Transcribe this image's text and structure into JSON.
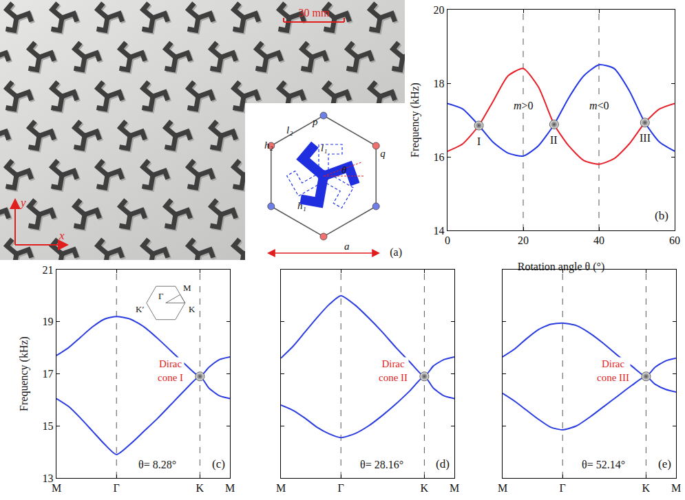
{
  "panel_a": {
    "label": "(a)",
    "scale_bar": "30 mm",
    "axis_labels": [
      "x",
      "y"
    ],
    "unit_cell": {
      "vertices": [
        "p",
        "q"
      ],
      "dimensions": [
        "l₁",
        "l₂",
        "h₁",
        "h₂",
        "θ"
      ],
      "lattice_constant": "a"
    }
  },
  "chart_data": [
    {
      "type": "line",
      "panel": "(b)",
      "x_label": "Rotation angle θ (°)",
      "y_label": "Frequency (kHz)",
      "xlim": [
        0,
        60
      ],
      "xticks": [
        0,
        20,
        40,
        60
      ],
      "ylim": [
        14,
        20
      ],
      "yticks": [
        14,
        16,
        18,
        20
      ],
      "x": [
        0,
        4,
        8.28,
        12,
        16,
        20,
        24,
        28.16,
        32,
        36,
        40,
        44,
        48,
        52.14,
        56,
        60
      ],
      "series": [
        {
          "color": "#e8202a",
          "values": [
            16.15,
            16.35,
            16.85,
            17.5,
            18.2,
            18.4,
            17.9,
            16.88,
            16.3,
            15.9,
            15.8,
            15.95,
            16.35,
            16.93,
            17.3,
            17.45
          ]
        },
        {
          "color": "#2236e6",
          "values": [
            17.45,
            17.3,
            16.85,
            16.4,
            16.1,
            16.02,
            16.3,
            16.88,
            17.6,
            18.2,
            18.5,
            18.4,
            17.8,
            16.93,
            16.4,
            16.15
          ]
        }
      ],
      "vlines": [
        {
          "x": 20,
          "label": "m>0",
          "y": 17.4
        },
        {
          "x": 40,
          "label": "m<0",
          "y": 17.4
        }
      ],
      "points": [
        {
          "label": "I",
          "x": 8.28,
          "y": 16.85
        },
        {
          "label": "II",
          "x": 28.16,
          "y": 16.88
        },
        {
          "label": "III",
          "x": 52.14,
          "y": 16.93
        }
      ]
    },
    {
      "type": "line",
      "panel": "(c)",
      "y_label": "Frequency (kHz)",
      "xlim": [
        0,
        2.89
      ],
      "xticks": [
        {
          "value": 0,
          "label": "M"
        },
        {
          "value": 1,
          "label": "Γ"
        },
        {
          "value": 2.39,
          "label": "K"
        },
        {
          "value": 2.89,
          "label": "M"
        }
      ],
      "ylim": [
        13,
        21
      ],
      "yticks": [
        13,
        15,
        17,
        19,
        21
      ],
      "x": [
        0,
        0.2,
        0.4,
        0.6,
        0.8,
        1,
        1.23,
        1.46,
        1.69,
        1.92,
        2.15,
        2.39,
        2.54,
        2.72,
        2.89
      ],
      "series": [
        {
          "color": "#2a3ce0",
          "values": [
            17.7,
            18.0,
            18.4,
            18.8,
            19.1,
            19.2,
            19.1,
            18.8,
            18.35,
            17.85,
            17.35,
            16.9,
            17.25,
            17.55,
            17.65
          ]
        },
        {
          "color": "#2a3ce0",
          "values": [
            16.05,
            15.75,
            15.3,
            14.8,
            14.3,
            13.9,
            14.3,
            14.8,
            15.3,
            15.85,
            16.4,
            16.9,
            16.45,
            16.15,
            16.05
          ]
        }
      ],
      "vlines": [
        {
          "x": 1
        },
        {
          "x": 2.39
        }
      ],
      "points": [
        {
          "label": "Dirac cone I",
          "x": 2.39,
          "y": 16.9
        }
      ],
      "annotations": [
        "θ= 8.28°"
      ],
      "inset": {
        "labels": [
          "K′",
          "Γ",
          "M",
          "K"
        ]
      }
    },
    {
      "type": "line",
      "panel": "(d)",
      "tick_labels": "x",
      "xlim": [
        0,
        2.89
      ],
      "xticks": [
        {
          "value": 0,
          "label": "M"
        },
        {
          "value": 1,
          "label": "Γ"
        },
        {
          "value": 2.39,
          "label": "K"
        },
        {
          "value": 2.89,
          "label": "M"
        }
      ],
      "ylim": [
        13,
        21
      ],
      "yticks": [
        13,
        15,
        17,
        19,
        21
      ],
      "x": [
        0,
        0.2,
        0.4,
        0.6,
        0.8,
        1,
        1.23,
        1.46,
        1.69,
        1.92,
        2.15,
        2.39,
        2.54,
        2.72,
        2.89
      ],
      "series": [
        {
          "color": "#2a3ce0",
          "values": [
            17.6,
            18.05,
            18.6,
            19.15,
            19.65,
            20.0,
            19.65,
            19.15,
            18.6,
            18.0,
            17.45,
            16.9,
            17.3,
            17.55,
            17.65
          ]
        },
        {
          "color": "#2a3ce0",
          "values": [
            15.8,
            15.6,
            15.3,
            14.95,
            14.7,
            14.55,
            14.7,
            15.0,
            15.4,
            15.85,
            16.35,
            16.9,
            16.45,
            16.15,
            16.05
          ]
        }
      ],
      "vlines": [
        {
          "x": 1
        },
        {
          "x": 2.39
        }
      ],
      "points": [
        {
          "label": "Dirac cone II",
          "x": 2.39,
          "y": 16.9
        }
      ],
      "annotations": [
        "θ= 28.16°"
      ]
    },
    {
      "type": "line",
      "panel": "(e)",
      "tick_labels": "x",
      "xlim": [
        0,
        2.89
      ],
      "xticks": [
        {
          "value": 0,
          "label": "M"
        },
        {
          "value": 1,
          "label": "Γ"
        },
        {
          "value": 2.39,
          "label": "K"
        },
        {
          "value": 2.89,
          "label": "M"
        }
      ],
      "ylim": [
        13,
        21
      ],
      "yticks": [
        13,
        15,
        17,
        19,
        21
      ],
      "x": [
        0,
        0.2,
        0.4,
        0.6,
        0.8,
        1,
        1.23,
        1.46,
        1.69,
        1.92,
        2.15,
        2.39,
        2.54,
        2.72,
        2.89
      ],
      "series": [
        {
          "color": "#2a3ce0",
          "values": [
            17.65,
            17.95,
            18.35,
            18.7,
            18.9,
            18.95,
            18.85,
            18.55,
            18.15,
            17.7,
            17.3,
            16.9,
            17.25,
            17.5,
            17.6
          ]
        },
        {
          "color": "#2a3ce0",
          "values": [
            16.25,
            15.95,
            15.6,
            15.25,
            14.95,
            14.85,
            15.0,
            15.35,
            15.75,
            16.15,
            16.55,
            16.9,
            16.6,
            16.4,
            16.3
          ]
        }
      ],
      "vlines": [
        {
          "x": 1
        },
        {
          "x": 2.39
        }
      ],
      "points": [
        {
          "label": "Dirac cone III",
          "x": 2.39,
          "y": 16.9
        }
      ],
      "annotations": [
        "θ= 52.14°"
      ]
    }
  ]
}
